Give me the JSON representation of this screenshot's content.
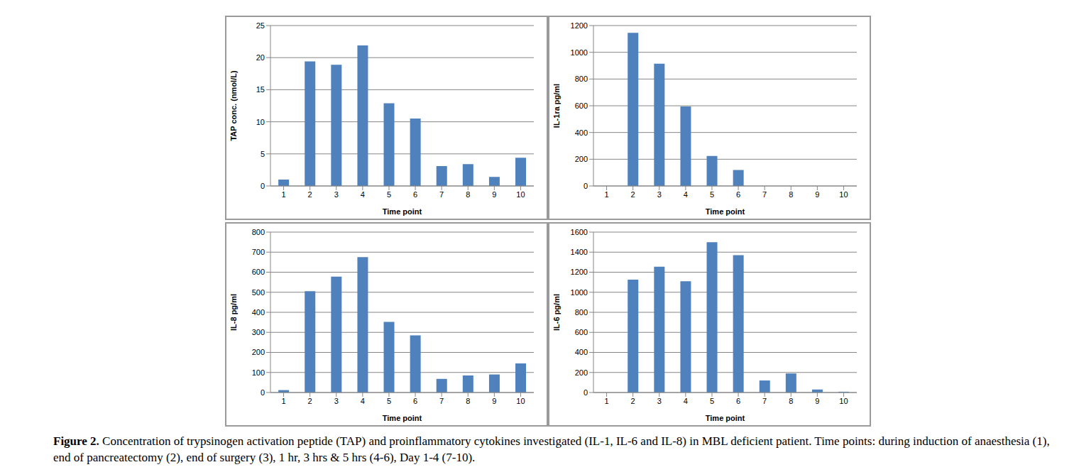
{
  "chart_data": [
    {
      "type": "bar",
      "xlabel": "Time point",
      "ylabel": "TAP conc. (nmol/L)",
      "categories": [
        "1",
        "2",
        "3",
        "4",
        "5",
        "6",
        "7",
        "8",
        "9",
        "10"
      ],
      "values": [
        1,
        19.4,
        18.9,
        21.9,
        12.9,
        10.5,
        3.1,
        3.4,
        1.4,
        4.4
      ],
      "color": "#4f81bd",
      "ylim": [
        0,
        25
      ],
      "yticks": [
        0,
        5,
        10,
        15,
        20,
        25
      ],
      "grid": true
    },
    {
      "type": "bar",
      "xlabel": "Time point",
      "ylabel": "IL-1ra pg/ml",
      "categories": [
        "1",
        "2",
        "3",
        "4",
        "5",
        "6",
        "7",
        "8",
        "9",
        "10"
      ],
      "values": [
        0,
        1145,
        915,
        595,
        225,
        120,
        0,
        0,
        0,
        0
      ],
      "color": "#4f81bd",
      "ylim": [
        0,
        1200
      ],
      "yticks": [
        0,
        200,
        400,
        600,
        800,
        1000,
        1200
      ],
      "grid": true
    },
    {
      "type": "bar",
      "xlabel": "Time point",
      "ylabel": "IL-8 pg/ml",
      "categories": [
        "1",
        "2",
        "3",
        "4",
        "5",
        "6",
        "7",
        "8",
        "9",
        "10"
      ],
      "values": [
        12,
        505,
        578,
        675,
        352,
        285,
        68,
        85,
        90,
        145
      ],
      "color": "#4f81bd",
      "ylim": [
        0,
        800
      ],
      "yticks": [
        0,
        100,
        200,
        300,
        400,
        500,
        600,
        700,
        800
      ],
      "grid": true
    },
    {
      "type": "bar",
      "xlabel": "Time point",
      "ylabel": "IL-6 pg/ml",
      "categories": [
        "1",
        "2",
        "3",
        "4",
        "5",
        "6",
        "7",
        "8",
        "9",
        "10"
      ],
      "values": [
        0,
        1125,
        1255,
        1110,
        1500,
        1370,
        120,
        190,
        30,
        8
      ],
      "color": "#4f81bd",
      "ylim": [
        0,
        1600
      ],
      "yticks": [
        0,
        200,
        400,
        600,
        800,
        1000,
        1200,
        1400,
        1600
      ],
      "grid": true
    }
  ],
  "caption": {
    "label": "Figure 2.",
    "text": "Concentration of trypsinogen activation peptide (TAP) and proinflammatory cytokines investigated (IL-1, IL-6 and IL-8) in MBL deficient patient. Time points: during induction of anaesthesia (1), end of pancreatectomy (2), end of surgery (3), 1 hr, 3 hrs & 5 hrs (4-6), Day 1-4 (7-10)."
  }
}
